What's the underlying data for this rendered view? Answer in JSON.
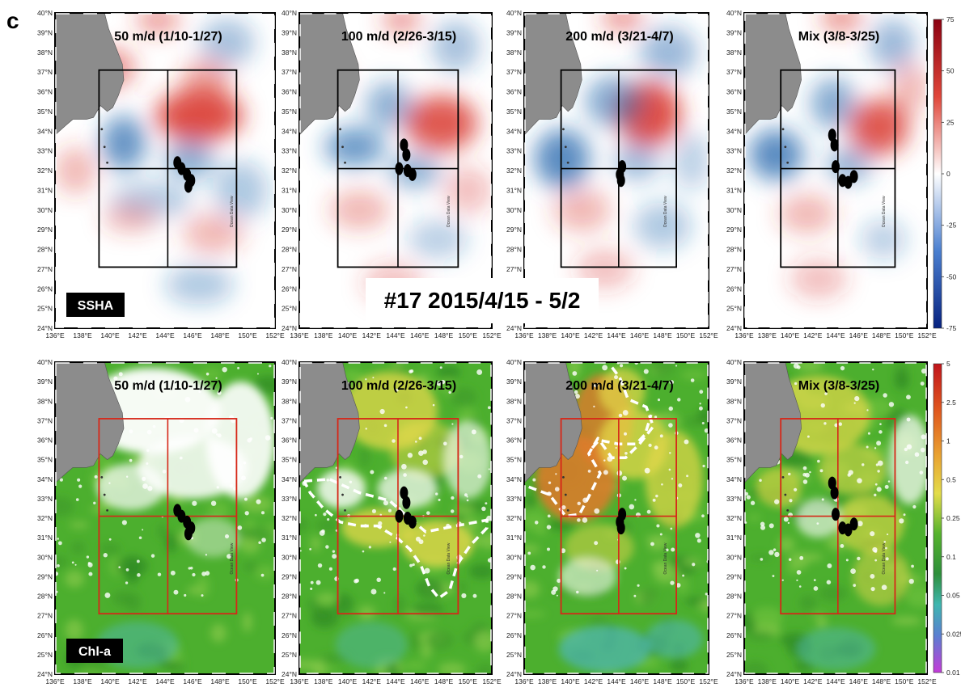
{
  "figure": {
    "panel_letter": "c",
    "center_label": "#17 2015/4/15 - 5/2",
    "watermark": "Ocean Data View"
  },
  "rows": [
    {
      "variable_label": "SSHA",
      "panels": [
        {
          "title": "50 m/d (1/10-1/27)",
          "markers": [
            [
              144.9,
              32.4
            ],
            [
              145.2,
              32.1
            ],
            [
              145.6,
              31.8
            ],
            [
              145.9,
              31.5
            ],
            [
              145.7,
              31.2
            ]
          ]
        },
        {
          "title": "100 m/d (2/26-3/15)",
          "markers": [
            [
              144.7,
              33.3
            ],
            [
              144.9,
              32.8
            ],
            [
              144.3,
              32.1
            ],
            [
              145.0,
              32.0
            ],
            [
              145.4,
              31.8
            ]
          ]
        },
        {
          "title": "200 m/d (3/21-4/7)",
          "markers": [
            [
              144.5,
              32.2
            ],
            [
              144.3,
              31.8
            ],
            [
              144.4,
              31.5
            ]
          ]
        },
        {
          "title": "Mix (3/8-3/25)",
          "markers": [
            [
              143.7,
              33.8
            ],
            [
              143.9,
              33.3
            ],
            [
              144.0,
              32.2
            ],
            [
              144.6,
              31.5
            ],
            [
              145.1,
              31.4
            ],
            [
              145.6,
              31.7
            ]
          ]
        }
      ],
      "colorbar": {
        "ticks": [
          "75",
          "50",
          "25",
          "0",
          "-25",
          "-50",
          "-75"
        ]
      }
    },
    {
      "variable_label": "Chl-a",
      "panels": [
        {
          "title": "50 m/d (1/10-1/27)",
          "markers": [
            [
              144.9,
              32.4
            ],
            [
              145.2,
              32.1
            ],
            [
              145.6,
              31.8
            ],
            [
              145.9,
              31.5
            ],
            [
              145.7,
              31.2
            ]
          ]
        },
        {
          "title": "100 m/d (2/26-3/15)",
          "markers": [
            [
              144.7,
              33.3
            ],
            [
              144.9,
              32.8
            ],
            [
              144.3,
              32.1
            ],
            [
              145.0,
              32.0
            ],
            [
              145.4,
              31.8
            ]
          ]
        },
        {
          "title": "200 m/d (3/21-4/7)",
          "markers": [
            [
              144.5,
              32.2
            ],
            [
              144.3,
              31.8
            ],
            [
              144.4,
              31.5
            ]
          ]
        },
        {
          "title": "Mix (3/8-3/25)",
          "markers": [
            [
              143.7,
              33.8
            ],
            [
              143.9,
              33.3
            ],
            [
              144.0,
              32.2
            ],
            [
              144.6,
              31.5
            ],
            [
              145.1,
              31.4
            ],
            [
              145.6,
              31.7
            ]
          ]
        }
      ],
      "colorbar": {
        "ticks": [
          "5",
          "2.5",
          "1",
          "0.5",
          "0.25",
          "0.1",
          "0.05",
          "0.025",
          "0.01"
        ]
      }
    }
  ],
  "axes": {
    "lon_labels": [
      "136°E",
      "138°E",
      "140°E",
      "142°E",
      "144°E",
      "146°E",
      "148°E",
      "150°E",
      "152°E"
    ],
    "lat_labels": [
      "24°N",
      "25°N",
      "26°N",
      "27°N",
      "28°N",
      "29°N",
      "30°N",
      "31°N",
      "32°N",
      "33°N",
      "34°N",
      "35°N",
      "36°N",
      "37°N",
      "38°N",
      "39°N",
      "40°N"
    ],
    "lon_range": [
      136,
      152
    ],
    "lat_range": [
      24,
      40
    ]
  },
  "box": {
    "lon": [
      139.2,
      149.2
    ],
    "lat": [
      27.1,
      37.1
    ],
    "center": [
      144.2,
      32.1
    ]
  },
  "colors": {
    "ssha_high": "#d73027",
    "ssha_low": "#2166ac",
    "land": "#8c8c8c",
    "chl_green": "#4caf2e",
    "chl_yellow": "#e4d84a",
    "chl_orange": "#e07a2a",
    "box_ssha": "#000000",
    "box_chl": "#d62718",
    "marker": "#000000"
  }
}
